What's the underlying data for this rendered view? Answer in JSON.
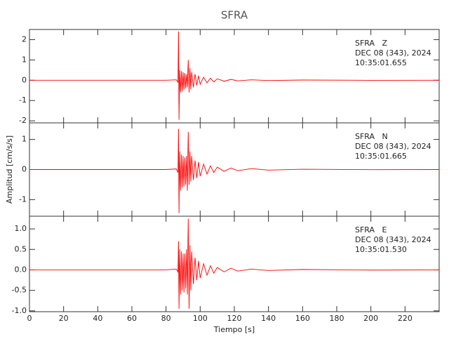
{
  "chart_data": [
    {
      "type": "line",
      "title": "SFRA",
      "annotations": [
        "SFRA   Z",
        "DEC 08 (343), 2024",
        "10:35:01.655"
      ],
      "x": [
        0,
        40,
        80,
        86,
        87,
        87.3,
        87.6,
        88,
        88.5,
        89,
        89.5,
        90,
        90.5,
        91,
        91.5,
        92,
        92.5,
        93,
        93.5,
        94,
        94.5,
        95,
        96,
        97,
        98,
        99,
        100,
        102,
        104,
        106,
        108,
        110,
        114,
        118,
        122,
        130,
        140,
        160,
        200,
        240
      ],
      "values": [
        0,
        0,
        0,
        0.02,
        -0.1,
        2.4,
        -1.95,
        0.5,
        -0.6,
        0.45,
        -0.55,
        0.4,
        -0.45,
        0.35,
        -0.4,
        0.3,
        -0.35,
        1.0,
        -0.6,
        0.6,
        -0.45,
        0.4,
        -0.35,
        0.3,
        -0.25,
        0.22,
        -0.2,
        0.15,
        -0.13,
        0.1,
        -0.09,
        0.07,
        -0.05,
        0.04,
        -0.03,
        0.02,
        -0.015,
        0.01,
        -0.005,
        0
      ],
      "color": "#ff0000",
      "xlim": [
        0,
        240
      ],
      "xticks": [
        0,
        20,
        40,
        60,
        80,
        100,
        120,
        140,
        160,
        180,
        200,
        220
      ],
      "ylim": [
        -2.1,
        2.5
      ],
      "yticks": [
        -2,
        -1,
        0,
        1,
        2
      ]
    },
    {
      "type": "line",
      "ylabel": "Amplitud [cm/s/s]",
      "annotations": [
        "SFRA   N",
        "DEC 08 (343), 2024",
        "10:35:01.665"
      ],
      "x": [
        0,
        40,
        80,
        86,
        87,
        87.3,
        87.6,
        88,
        88.5,
        89,
        89.5,
        90,
        90.5,
        91,
        91.5,
        92,
        92.5,
        93,
        93.5,
        94,
        94.5,
        95,
        96,
        97,
        98,
        99,
        100,
        102,
        104,
        106,
        108,
        110,
        114,
        118,
        122,
        130,
        140,
        160,
        200,
        240
      ],
      "values": [
        0,
        0,
        0,
        0.02,
        -0.1,
        1.35,
        -1.45,
        0.6,
        -0.7,
        0.5,
        -0.6,
        0.45,
        -0.55,
        0.4,
        -0.5,
        0.45,
        -0.7,
        1.25,
        -0.5,
        0.6,
        -0.4,
        0.45,
        -0.35,
        0.3,
        -0.28,
        0.25,
        -0.22,
        0.18,
        -0.15,
        0.12,
        -0.1,
        0.08,
        -0.06,
        0.05,
        -0.04,
        0.03,
        -0.02,
        0.01,
        -0.005,
        0
      ],
      "color": "#ff0000",
      "xlim": [
        0,
        240
      ],
      "xticks": [
        0,
        20,
        40,
        60,
        80,
        100,
        120,
        140,
        160,
        180,
        200,
        220
      ],
      "ylim": [
        -1.55,
        1.55
      ],
      "yticks": [
        -1,
        0,
        1
      ]
    },
    {
      "type": "line",
      "xlabel": "Tiempo [s]",
      "annotations": [
        "SFRA   E",
        "DEC 08 (343), 2024",
        "10:35:01.530"
      ],
      "x": [
        0,
        40,
        80,
        86,
        87,
        87.3,
        87.6,
        88,
        88.5,
        89,
        89.5,
        90,
        90.5,
        91,
        91.5,
        92,
        92.5,
        93,
        93.5,
        94,
        94.5,
        95,
        96,
        97,
        98,
        99,
        100,
        102,
        104,
        106,
        108,
        110,
        114,
        118,
        122,
        130,
        140,
        160,
        200,
        240
      ],
      "values": [
        0,
        0,
        0,
        0.02,
        -0.05,
        0.7,
        -0.95,
        0.5,
        -0.6,
        0.45,
        -0.5,
        0.4,
        -0.55,
        0.4,
        -0.45,
        0.5,
        -0.6,
        1.25,
        -0.95,
        0.6,
        -0.5,
        0.45,
        -0.35,
        0.3,
        -0.25,
        0.22,
        -0.2,
        0.15,
        -0.13,
        0.1,
        -0.08,
        0.06,
        -0.05,
        0.04,
        -0.03,
        0.02,
        -0.015,
        0.01,
        -0.005,
        0
      ],
      "color": "#ff0000",
      "xlim": [
        0,
        240
      ],
      "xticks": [
        0,
        20,
        40,
        60,
        80,
        100,
        120,
        140,
        160,
        180,
        200,
        220
      ],
      "ylim": [
        -1.02,
        1.31
      ],
      "yticks": [
        {
          "value": -1,
          "label": "-1.0"
        },
        -0.5,
        {
          "value": 0,
          "label": "0.0"
        },
        0.5,
        {
          "value": 1,
          "label": "1.0"
        }
      ]
    }
  ]
}
